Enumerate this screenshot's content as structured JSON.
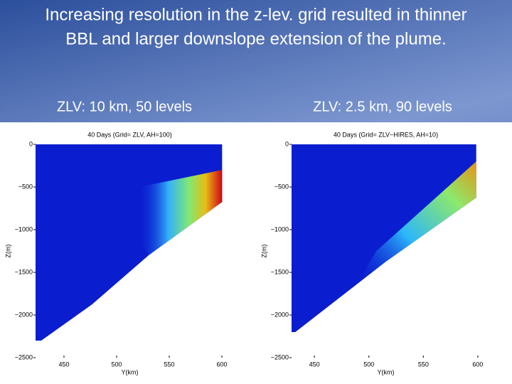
{
  "slide": {
    "title": [
      "Increasing resolution in the z-lev. grid resulted in thinner",
      "BBL and larger downslope extension of the plume."
    ],
    "panel_labels": [
      "ZLV:  10 km, 50 levels",
      "ZLV:   2.5 km, 90 levels"
    ]
  },
  "chart_data": [
    {
      "type": "contour",
      "title": "40 Days (Grid= ZLV, AH=100)",
      "x_label": "Y(km)",
      "y_label": "Z(m)",
      "xlim": [
        423,
        602
      ],
      "ylim": [
        -2500,
        0
      ],
      "xticks": [
        450,
        500,
        550,
        600
      ],
      "yticks": [
        {
          "value": -2500,
          "label": "−2500"
        },
        {
          "value": -2000,
          "label": "−2000"
        },
        {
          "value": -1500,
          "label": "−1500"
        },
        {
          "value": -1000,
          "label": "−1000"
        },
        {
          "value": -500,
          "label": "−500"
        },
        0
      ]
    },
    {
      "type": "contour",
      "title": "40 Days (Grid= ZLV−HIRES, AH=10)",
      "x_label": "Y(km)",
      "y_label": "Z(m)",
      "xlim": [
        429,
        602
      ],
      "ylim": [
        -2500,
        0
      ],
      "xticks": [
        450,
        500,
        550,
        600
      ],
      "yticks": [
        {
          "value": -2500,
          "label": "−2500"
        },
        {
          "value": -2000,
          "label": "−2000"
        },
        {
          "value": -1500,
          "label": "−1500"
        },
        {
          "value": -1000,
          "label": "−1000"
        },
        {
          "value": -500,
          "label": "−500"
        },
        0
      ]
    }
  ]
}
